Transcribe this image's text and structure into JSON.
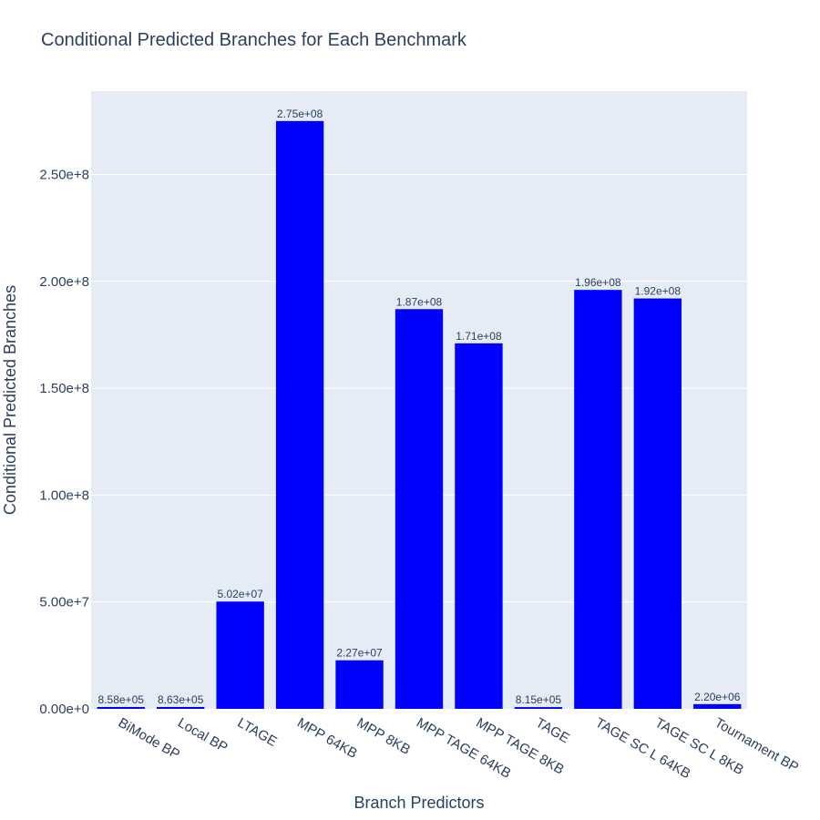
{
  "chart_data": {
    "type": "bar",
    "title": "Conditional Predicted Branches for Each Benchmark",
    "xlabel": "Branch Predictors",
    "ylabel": "Conditional Predicted Branches",
    "categories": [
      "BiMode BP",
      "Local BP",
      "LTAGE",
      "MPP 64KB",
      "MPP 8KB",
      "MPP TAGE 64KB",
      "MPP TAGE 8KB",
      "TAGE",
      "TAGE SC L 64KB",
      "TAGE SC L 8KB",
      "Tournament BP"
    ],
    "values": [
      858000,
      863000,
      50200000,
      275000000,
      22700000,
      187000000,
      171000000,
      815000,
      196000000,
      192000000,
      2200000
    ],
    "data_labels": [
      "8.58e+05",
      "8.63e+05",
      "5.02e+07",
      "2.75e+08",
      "2.27e+07",
      "1.87e+08",
      "1.71e+08",
      "8.15e+05",
      "1.96e+08",
      "1.92e+08",
      "2.20e+06"
    ],
    "yticks": [
      0,
      50000000,
      100000000,
      150000000,
      200000000,
      250000000
    ],
    "ytick_labels": [
      "0.00e+0",
      "5.00e+7",
      "1.00e+8",
      "1.50e+8",
      "2.00e+8",
      "2.50e+8"
    ],
    "ylim": [
      0,
      289000000
    ],
    "bar_color": "#0000ff",
    "plot_bg": "#e5ecf6",
    "grid": true,
    "legend": "none"
  }
}
